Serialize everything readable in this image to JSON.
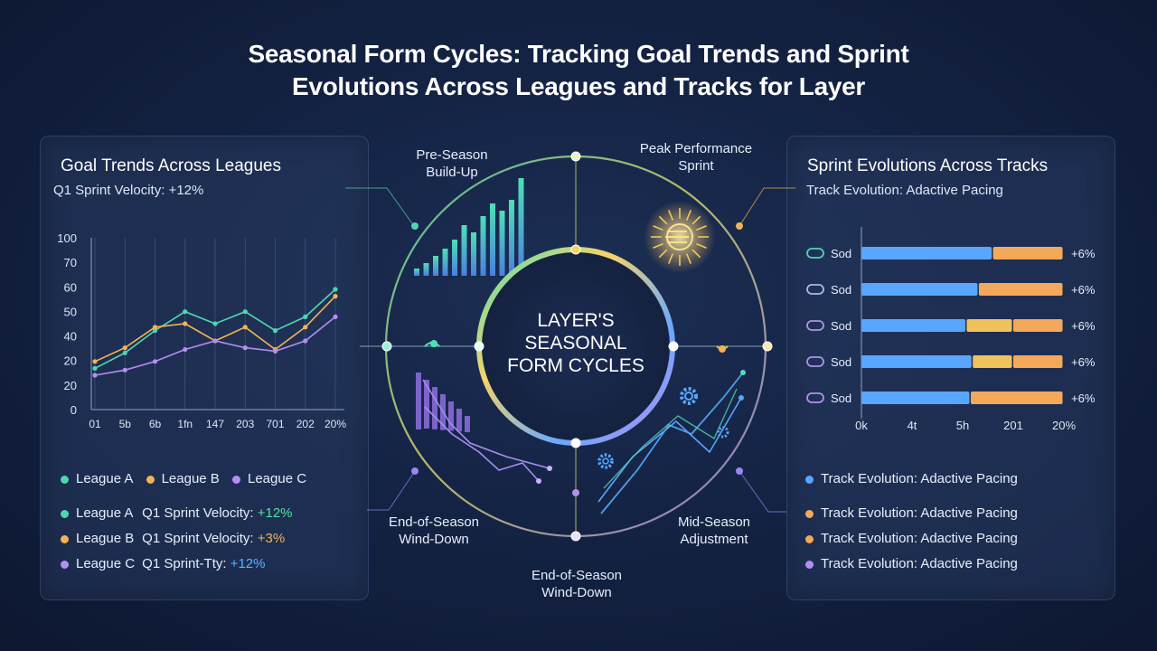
{
  "title_line1": "Seasonal Form Cycles: Tracking Goal Trends and Sprint",
  "title_line2": "Evolutions Across Leagues and Tracks for Layer",
  "left_panel": {
    "title": "Goal Trends Across Leagues",
    "subtitle": "Q1 Sprint Velocity: +12%",
    "legend": [
      {
        "label": "League A",
        "color": "#4fd6b0"
      },
      {
        "label": "League B",
        "color": "#f1b455"
      },
      {
        "label": "League C",
        "color": "#b48ef0"
      }
    ],
    "stats": [
      {
        "league": "League A",
        "text": "Q1 Sprint Velocity: ",
        "value": "+12%",
        "color": "#4fd6b0",
        "value_color": "#4fe39a"
      },
      {
        "league": "League B",
        "text": "Q1 Sprint Velocity: ",
        "value": "+3%",
        "color": "#f1b455",
        "value_color": "#f1b455"
      },
      {
        "league": "League C",
        "text": "Q1 Sprint-Τty: ",
        "value": "+12%",
        "color": "#b48ef0",
        "value_color": "#58b4ff"
      }
    ]
  },
  "center": {
    "core_line1": "LAYER'S",
    "core_line2": "SEASONAL",
    "core_line3": "FORM CYCLES",
    "phases": [
      {
        "line1": "Pre-Season",
        "line2": "Build-Up"
      },
      {
        "line1": "Peak Performance",
        "line2": "Sprint"
      },
      {
        "line1": "End-of-Season",
        "line2": "Wind-Down"
      },
      {
        "line1": "Mid-Season",
        "line2": "Adjustment"
      },
      {
        "line1": "End-of-Season",
        "line2": "Wind-Down"
      }
    ]
  },
  "right_panel": {
    "title": "Sprint Evolutions Across Tracks",
    "subtitle": "Track Evolution: Adactive Pacing",
    "legend": [
      {
        "label": "Track Evolution: Adactive Pacing",
        "color": "#58a6ff"
      },
      {
        "label": "Track Evolution: Adactive Pacing",
        "color": "#f4a85a"
      },
      {
        "label": "Track Evolution: Adactive Pacing",
        "color": "#f4a85a"
      },
      {
        "label": "Track Evolution: Adactive Pacing",
        "color": "#b48ef0"
      }
    ]
  },
  "chart_data": [
    {
      "type": "line",
      "x": [
        "01",
        "5b",
        "6b",
        "1fn",
        "147",
        "203",
        "701",
        "202",
        "20%"
      ],
      "ylim": [
        0,
        100
      ],
      "y_ticks": [
        "0",
        "20",
        "20",
        "40",
        "50",
        "60",
        "70",
        "100"
      ],
      "series": [
        {
          "name": "League A",
          "color": "#4fd6b0",
          "values": [
            24,
            33,
            46,
            57,
            50,
            57,
            46,
            54,
            70
          ]
        },
        {
          "name": "League B",
          "color": "#f1b455",
          "values": [
            28,
            36,
            48,
            50,
            40,
            48,
            35,
            48,
            66
          ]
        },
        {
          "name": "League C",
          "color": "#b48ef0",
          "values": [
            20,
            23,
            28,
            35,
            40,
            36,
            34,
            40,
            54
          ]
        }
      ]
    },
    {
      "type": "bar",
      "stacked": true,
      "categories": [
        "Sod",
        "Sod",
        "Sod",
        "Sod",
        "Sod"
      ],
      "x_ticks": [
        "0k",
        "4t",
        "5h",
        "201",
        "20%"
      ],
      "series": [
        {
          "color": "#58a6ff",
          "values": [
            65,
            58,
            52,
            55,
            54
          ]
        },
        {
          "color": "#f1c15b",
          "values": [
            0,
            0,
            23,
            20,
            0
          ]
        },
        {
          "color": "#f4a85a",
          "values": [
            35,
            42,
            25,
            25,
            46
          ]
        }
      ],
      "value_labels": [
        "+6%",
        "+6%",
        "+6%",
        "+6%",
        "+6%"
      ]
    }
  ]
}
